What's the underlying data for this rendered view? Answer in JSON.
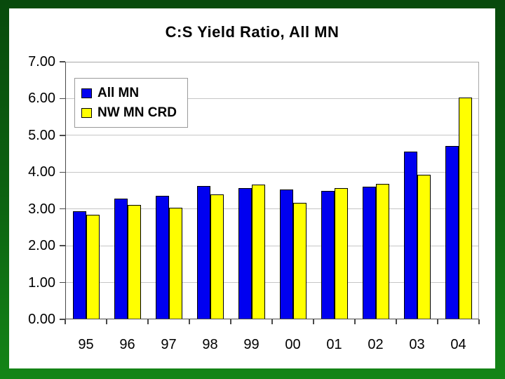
{
  "slide": {
    "border_color_top": "#084a0c",
    "border_color_bottom": "#148517",
    "background": "#ffffff"
  },
  "chart_data": {
    "type": "bar",
    "title": "C:S Yield Ratio, All MN",
    "categories": [
      "95",
      "96",
      "97",
      "98",
      "99",
      "00",
      "01",
      "02",
      "03",
      "04"
    ],
    "series": [
      {
        "name": "All MN",
        "color": "#0000f0",
        "values": [
          2.93,
          3.28,
          3.36,
          3.62,
          3.57,
          3.52,
          3.5,
          3.6,
          4.55,
          4.72
        ]
      },
      {
        "name": "NW MN CRD",
        "color": "#ffff00",
        "values": [
          2.84,
          3.1,
          3.03,
          3.39,
          3.66,
          3.16,
          3.57,
          3.68,
          3.92,
          6.02
        ]
      }
    ],
    "xlabel": "",
    "ylabel": "",
    "ylim": [
      0,
      7
    ],
    "ytick_step": 1,
    "ytick_labels": [
      "0.00",
      "1.00",
      "2.00",
      "3.00",
      "4.00",
      "5.00",
      "6.00",
      "7.00"
    ],
    "grid": true,
    "gridline_color": "#c6c6c6",
    "legend_position": "top-left",
    "bar_border_color": "#000000"
  }
}
